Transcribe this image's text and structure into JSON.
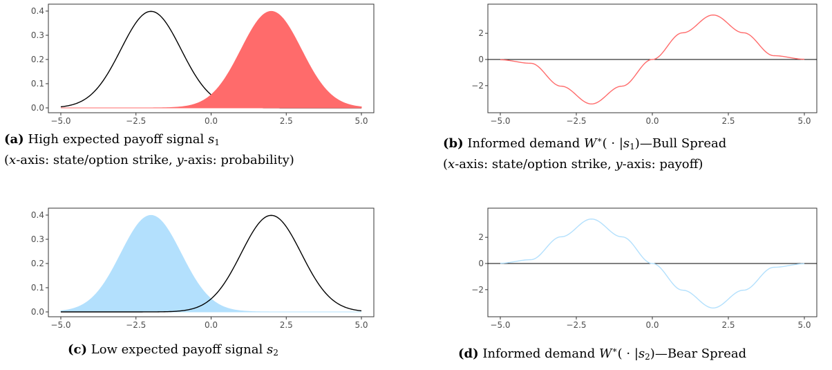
{
  "colors": {
    "red": "#ff6b6b",
    "blue": "#b3e0fd",
    "black": "#000000",
    "frame": "#333333",
    "tick_text": "#4d4d4d"
  },
  "chart_data": [
    {
      "id": "a",
      "type": "area",
      "x_ticks": [
        "−5.0",
        "−2.5",
        "0.0",
        "2.5",
        "5.0"
      ],
      "y_ticks": [
        "0.0",
        "0.1",
        "0.2",
        "0.3",
        "0.4"
      ],
      "xlim": [
        -5,
        5
      ],
      "ylim": [
        0,
        0.4
      ],
      "series": [
        {
          "style": "line",
          "color": "#000000",
          "mean": -2,
          "sd": 1,
          "x": [
            -5,
            -4,
            -3,
            -2,
            -1,
            0,
            1,
            2,
            3,
            4,
            5
          ],
          "y": [
            0.004,
            0.054,
            0.242,
            0.399,
            0.242,
            0.054,
            0.004,
            0.0001,
            0,
            0,
            0
          ]
        },
        {
          "style": "fill",
          "color": "#ff6b6b",
          "mean": 2,
          "sd": 1,
          "x": [
            -5,
            -4,
            -3,
            -2,
            -1,
            0,
            1,
            2,
            3,
            4,
            5
          ],
          "y": [
            0,
            0,
            0,
            0.0001,
            0.004,
            0.054,
            0.242,
            0.399,
            0.242,
            0.054,
            0.004
          ]
        }
      ]
    },
    {
      "id": "b",
      "type": "line",
      "x_ticks": [
        "−5.0",
        "−2.5",
        "0.0",
        "2.5",
        "5.0"
      ],
      "y_ticks": [
        "−2",
        "0",
        "2"
      ],
      "xlim": [
        -5,
        5
      ],
      "ylim": [
        -3.7,
        3.7
      ],
      "zero_line": true,
      "series": [
        {
          "style": "line",
          "color": "#ff6b6b",
          "x": [
            -5,
            -4,
            -3,
            -2,
            -1,
            0,
            1,
            2,
            3,
            4,
            5
          ],
          "y": [
            -0.02,
            -0.29,
            -2.04,
            -3.4,
            -2.04,
            0,
            2.04,
            3.4,
            2.04,
            0.29,
            0.02
          ]
        }
      ]
    },
    {
      "id": "c",
      "type": "area",
      "x_ticks": [
        "−5.0",
        "−2.5",
        "0.0",
        "2.5",
        "5.0"
      ],
      "y_ticks": [
        "0.0",
        "0.1",
        "0.2",
        "0.3",
        "0.4"
      ],
      "xlim": [
        -5,
        5
      ],
      "ylim": [
        0,
        0.4
      ],
      "series": [
        {
          "style": "fill",
          "color": "#b3e0fd",
          "mean": -2,
          "sd": 1,
          "x": [
            -5,
            -4,
            -3,
            -2,
            -1,
            0,
            1,
            2,
            3,
            4,
            5
          ],
          "y": [
            0.004,
            0.054,
            0.242,
            0.399,
            0.242,
            0.054,
            0.004,
            0.0001,
            0,
            0,
            0
          ]
        },
        {
          "style": "line",
          "color": "#000000",
          "mean": 2,
          "sd": 1,
          "x": [
            -5,
            -4,
            -3,
            -2,
            -1,
            0,
            1,
            2,
            3,
            4,
            5
          ],
          "y": [
            0,
            0,
            0,
            0.0001,
            0.004,
            0.054,
            0.242,
            0.399,
            0.242,
            0.054,
            0.004
          ]
        }
      ]
    },
    {
      "id": "d",
      "type": "line",
      "x_ticks": [
        "−5.0",
        "−2.5",
        "0.0",
        "2.5",
        "5.0"
      ],
      "y_ticks": [
        "−2",
        "0",
        "2"
      ],
      "xlim": [
        -5,
        5
      ],
      "ylim": [
        -3.7,
        3.7
      ],
      "zero_line": true,
      "series": [
        {
          "style": "line",
          "color": "#b3e0fd",
          "x": [
            -5,
            -4,
            -3,
            -2,
            -1,
            0,
            1,
            2,
            3,
            4,
            5
          ],
          "y": [
            0.02,
            0.29,
            2.04,
            3.4,
            2.04,
            0,
            -2.04,
            -3.4,
            -2.04,
            -0.29,
            -0.02
          ]
        }
      ]
    }
  ],
  "captions": {
    "a": {
      "letter": "(a)",
      "text": "High expected payoff signal",
      "signal": "s",
      "signal_sub": "1",
      "line2_open": "(",
      "x_var": "x",
      "line2_mid": "-axis: state/option strike,",
      "y_var": "y",
      "line2_end": "-axis: probability)"
    },
    "b": {
      "letter": "(b)",
      "text": "Informed demand",
      "W": "W",
      "star": "∗",
      "arg_open": "( · |",
      "signal": "s",
      "signal_sub": "1",
      "arg_close": ")",
      "suffix": "—Bull Spread",
      "line2_open": "(",
      "x_var": "x",
      "line2_mid": "-axis: state/option strike,",
      "y_var": "y",
      "line2_end": "-axis: payoff)"
    },
    "c": {
      "letter": "(c)",
      "text": "Low expected payoff signal",
      "signal": "s",
      "signal_sub": "2"
    },
    "d": {
      "letter": "(d)",
      "text": "Informed demand",
      "W": "W",
      "star": "∗",
      "arg_open": "( · |",
      "signal": "s",
      "signal_sub": "2",
      "arg_close": ")",
      "suffix": "—Bear Spread"
    }
  }
}
